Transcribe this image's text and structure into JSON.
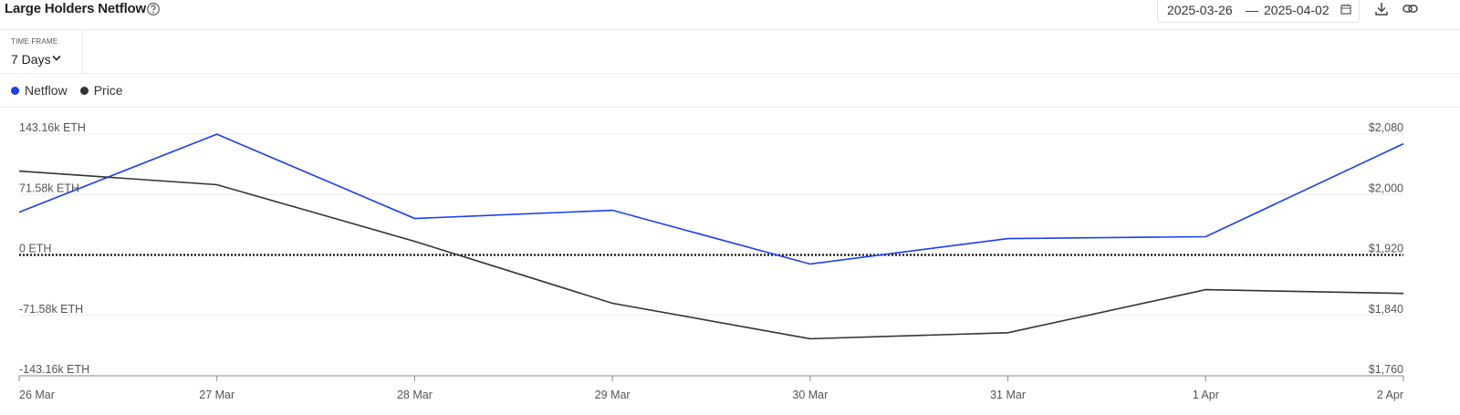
{
  "header": {
    "title": "Large Holders Netflow",
    "date_start": "2025-03-26",
    "date_separator": "—",
    "date_end": "2025-04-02"
  },
  "time_frame": {
    "label": "TIME FRAME",
    "value": "7 Days"
  },
  "chart_data": {
    "type": "line",
    "categories": [
      "26 Mar",
      "27 Mar",
      "28 Mar",
      "29 Mar",
      "30 Mar",
      "31 Mar",
      "1 Apr",
      "2 Apr"
    ],
    "series": [
      {
        "name": "Netflow",
        "color": "#1a3df2",
        "values": [
          50700,
          143000,
          43200,
          52900,
          -10800,
          19400,
          21600,
          131700
        ]
      },
      {
        "name": "Price",
        "color": "#333333",
        "axis": "y2",
        "values": [
          2031,
          2013,
          1938,
          1856,
          1809,
          1817,
          1874,
          1869
        ]
      }
    ],
    "ylim": [
      -143160,
      143160
    ],
    "yticks": [
      {
        "value": 143160,
        "label": "143.16k ETH"
      },
      {
        "value": 71580,
        "label": "71.58k ETH"
      },
      {
        "value": 0,
        "label": "0 ETH"
      },
      {
        "value": -71580,
        "label": "-71.58k ETH"
      },
      {
        "value": -143160,
        "label": "-143.16k ETH"
      }
    ],
    "y2lim": [
      1760,
      2080
    ],
    "y2ticks": [
      {
        "value": 2080,
        "label": "$2,080"
      },
      {
        "value": 2000,
        "label": "$2,000"
      },
      {
        "value": 1920,
        "label": "$1,920"
      },
      {
        "value": 1840,
        "label": "$1,840"
      },
      {
        "value": 1760,
        "label": "$1,760"
      }
    ],
    "grid": true
  }
}
